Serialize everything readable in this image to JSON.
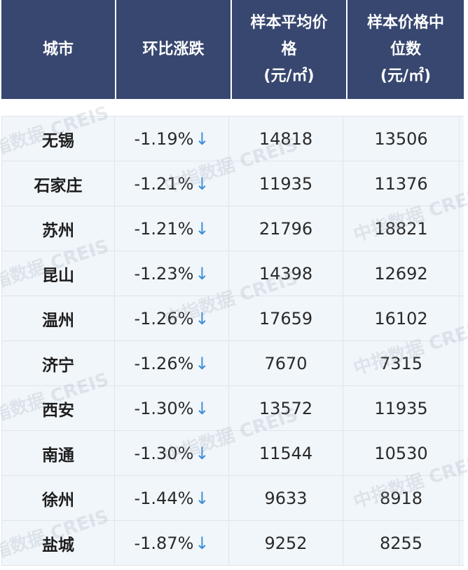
{
  "header": {
    "columns": [
      {
        "line1": "城市",
        "line2": "",
        "line3": ""
      },
      {
        "line1": "环比涨跌",
        "line2": "",
        "line3": ""
      },
      {
        "line1": "样本平均价",
        "line2": "格",
        "line3": "(元/㎡)"
      },
      {
        "line1": "样本价格中",
        "line2": "位数",
        "line3": "(元/㎡)"
      }
    ]
  },
  "rows": [
    {
      "city": "无锡",
      "change": "-1.19%",
      "avg": "14818",
      "median": "13506"
    },
    {
      "city": "石家庄",
      "change": "-1.21%",
      "avg": "11935",
      "median": "11376"
    },
    {
      "city": "苏州",
      "change": "-1.21%",
      "avg": "21796",
      "median": "18821"
    },
    {
      "city": "昆山",
      "change": "-1.23%",
      "avg": "14398",
      "median": "12692"
    },
    {
      "city": "温州",
      "change": "-1.26%",
      "avg": "17659",
      "median": "16102"
    },
    {
      "city": "济宁",
      "change": "-1.26%",
      "avg": "7670",
      "median": "7315"
    },
    {
      "city": "西安",
      "change": "-1.30%",
      "avg": "13572",
      "median": "11935"
    },
    {
      "city": "南通",
      "change": "-1.30%",
      "avg": "11544",
      "median": "10530"
    },
    {
      "city": "徐州",
      "change": "-1.44%",
      "avg": "9633",
      "median": "8918"
    },
    {
      "city": "盐城",
      "change": "-1.87%",
      "avg": "9252",
      "median": "8255"
    }
  ],
  "arrow": "↓",
  "arrow_icon": "down-arrow-icon",
  "watermark": "中指数据 CREIS",
  "colors": {
    "header_bg": "#37476f",
    "row_bg": "#f1f6fb",
    "arrow": "#3d8fd8"
  }
}
